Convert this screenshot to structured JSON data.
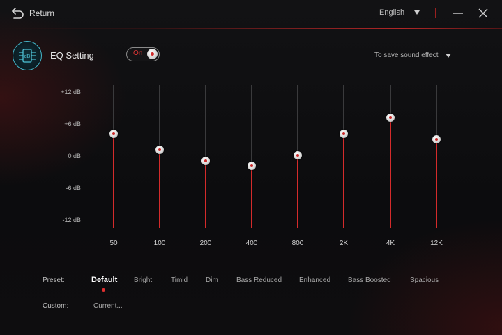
{
  "titlebar": {
    "return_label": "Return",
    "language": "English"
  },
  "eq": {
    "title": "EQ Setting",
    "toggle_label": "On",
    "toggle_on": true,
    "save_effect_label": "To save sound effect"
  },
  "db_labels": [
    "+12  dB",
    "+6  dB",
    "0  dB",
    "-6  dB",
    "-12  dB"
  ],
  "bands": [
    {
      "freq": "50",
      "gain_db": 4
    },
    {
      "freq": "100",
      "gain_db": 1
    },
    {
      "freq": "200",
      "gain_db": -1
    },
    {
      "freq": "400",
      "gain_db": -2
    },
    {
      "freq": "800",
      "gain_db": 0
    },
    {
      "freq": "2K",
      "gain_db": 4
    },
    {
      "freq": "4K",
      "gain_db": 7
    },
    {
      "freq": "12K",
      "gain_db": 3
    }
  ],
  "preset": {
    "label": "Preset:",
    "items": [
      "Default",
      "Bright",
      "Timid",
      "Dim",
      "Bass Reduced",
      "Enhanced",
      "Bass Boosted",
      "Spacious"
    ],
    "selected": "Default"
  },
  "custom": {
    "label": "Custom:",
    "value": "Current..."
  },
  "colors": {
    "accent": "#d42b2b",
    "icon_ring": "#43b6c9"
  }
}
